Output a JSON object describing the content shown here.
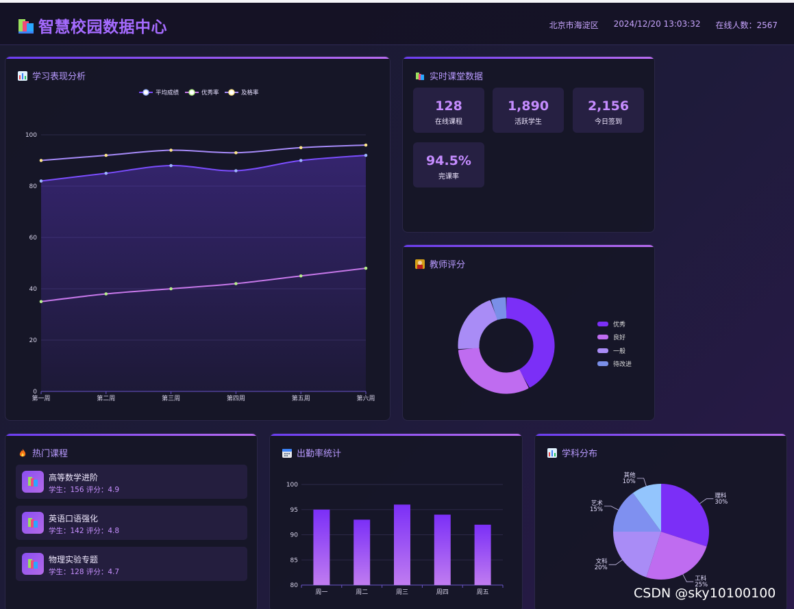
{
  "header": {
    "title": "智慧校园数据中心",
    "location": "北京市海淀区",
    "datetime": "2024/12/20 13:03:32",
    "online": "在线人数：2567"
  },
  "performance": {
    "title": "学习表现分析",
    "legend": [
      "平均成绩",
      "优秀率",
      "及格率"
    ],
    "chart_data": {
      "type": "line",
      "categories": [
        "第一周",
        "第二周",
        "第三周",
        "第四周",
        "第五周",
        "第六周"
      ],
      "ylim": [
        0,
        100
      ],
      "yticks": [
        0,
        20,
        40,
        60,
        80,
        100
      ],
      "series": [
        {
          "name": "平均成绩",
          "values": [
            82,
            85,
            88,
            86,
            90,
            92
          ],
          "color": "#7b4dff",
          "area": true
        },
        {
          "name": "优秀率",
          "values": [
            35,
            38,
            40,
            42,
            45,
            48
          ],
          "color": "#c778ea"
        },
        {
          "name": "及格率",
          "values": [
            90,
            92,
            94,
            93,
            95,
            96
          ],
          "color": "#a78bfa"
        }
      ]
    }
  },
  "realtime": {
    "title": "实时课堂数据",
    "stats": [
      {
        "value": "128",
        "label": "在线课程"
      },
      {
        "value": "1,890",
        "label": "活跃学生"
      },
      {
        "value": "2,156",
        "label": "今日签到"
      },
      {
        "value": "94.5%",
        "label": "完课率"
      }
    ]
  },
  "teacher": {
    "title": "教师评分",
    "legend": [
      "优秀",
      "良好",
      "一般",
      "待改进"
    ],
    "chart_data": {
      "type": "pie",
      "categories": [
        "优秀",
        "良好",
        "一般",
        "待改进"
      ],
      "values": [
        40,
        30,
        20,
        5
      ],
      "colors": [
        "#7b2ff7",
        "#bf6cf0",
        "#a98cf6",
        "#7a8fe8"
      ]
    }
  },
  "hot": {
    "title": "热门课程",
    "courses": [
      {
        "name": "高等数学进阶",
        "meta": "学生：156   评分：4.9"
      },
      {
        "name": "英语口语强化",
        "meta": "学生：142   评分：4.8"
      },
      {
        "name": "物理实验专题",
        "meta": "学生：128   评分：4.7"
      }
    ]
  },
  "attendance": {
    "title": "出勤率统计",
    "chart_data": {
      "type": "bar",
      "categories": [
        "周一",
        "周二",
        "周三",
        "周四",
        "周五"
      ],
      "values": [
        95,
        93,
        96,
        94,
        92
      ],
      "ylim": [
        80,
        100
      ],
      "yticks": [
        80,
        85,
        90,
        95,
        100
      ]
    }
  },
  "subject": {
    "title": "学科分布",
    "chart_data": {
      "type": "pie",
      "categories": [
        "理科",
        "工科",
        "文科",
        "艺术",
        "其他"
      ],
      "values": [
        30,
        25,
        20,
        15,
        10
      ],
      "labels": [
        "30%",
        "25%",
        "20%",
        "15%",
        "10%"
      ],
      "colors": [
        "#7b2ff7",
        "#bf6cf0",
        "#a98cf6",
        "#7f90f0",
        "#93c5fd"
      ]
    }
  },
  "watermark": "CSDN @sky10100100"
}
